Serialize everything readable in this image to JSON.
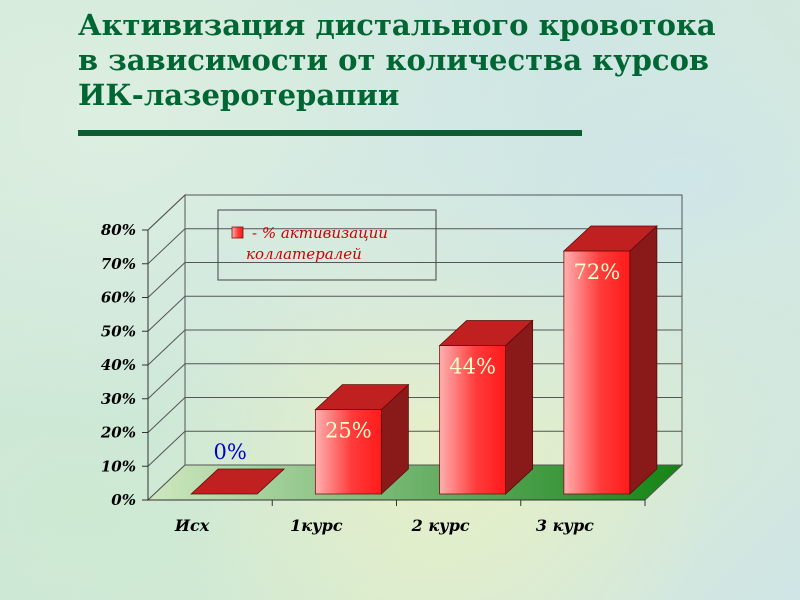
{
  "slide": {
    "title_lines": [
      "Активизация дистального кровотока",
      "в зависимости от количества курсов",
      "ИК-лазеротерапии"
    ]
  },
  "colors": {
    "title": "#006633",
    "bar_front": "#ff4040",
    "bar_top": "#c02020",
    "bar_side": "#8a1a1a",
    "floor": "#2e8b2e",
    "label_light": "#ffffcc",
    "label_zero": "#0000cc"
  },
  "chart_data": {
    "type": "bar",
    "title": "",
    "xlabel": "",
    "ylabel": "",
    "categories": [
      "Исх",
      "1курс",
      "2 курс",
      "3 курс"
    ],
    "series": [
      {
        "name": "- % активизации коллатералей",
        "values": [
          0,
          25,
          44,
          72
        ]
      }
    ],
    "data_labels": [
      "0%",
      "25%",
      "44%",
      "72%"
    ],
    "y_ticks": [
      "0%",
      "10%",
      "20%",
      "30%",
      "40%",
      "50%",
      "60%",
      "70%",
      "80%"
    ],
    "ylim": [
      0,
      80
    ],
    "grid": true,
    "legend": {
      "position": "top-left",
      "lines": [
        "- % активизации",
        "коллатералей"
      ]
    },
    "style": "3d-column"
  }
}
